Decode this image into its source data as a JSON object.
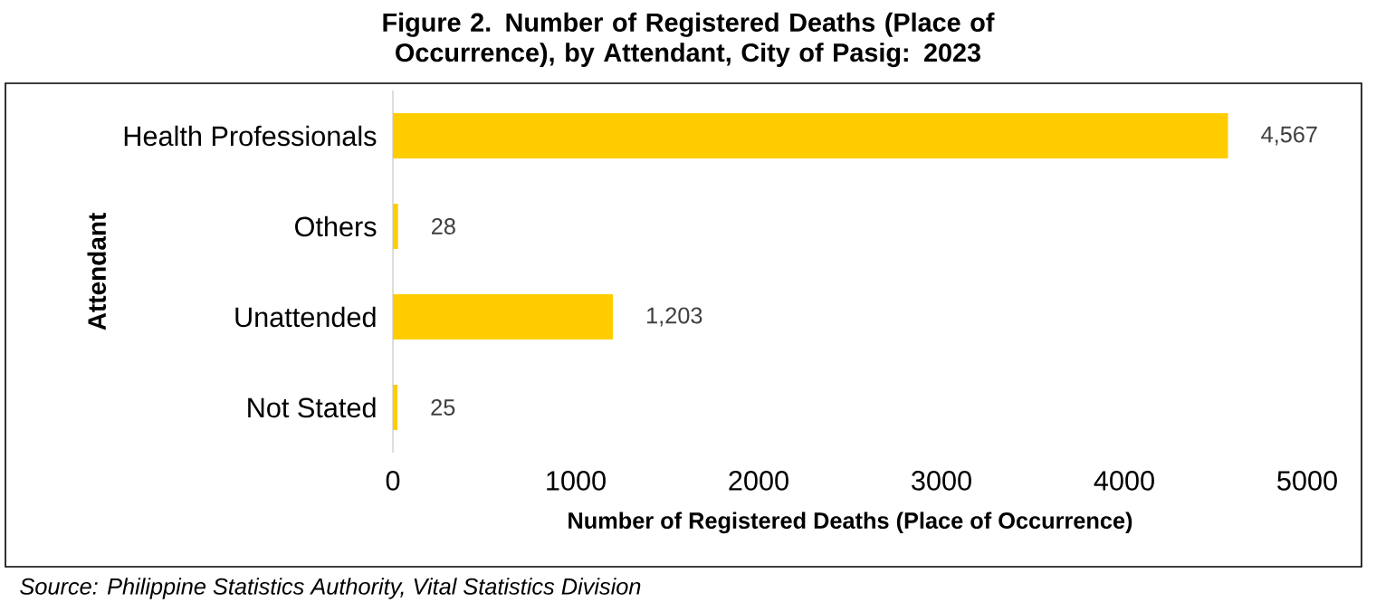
{
  "chart_data": {
    "type": "bar",
    "orientation": "horizontal",
    "title": "Figure 2.  Number of Registered Deaths (Place of Occurrence), by Attendant, City of Pasig: 2023",
    "categories": [
      "Health Professionals",
      "Others",
      "Unattended",
      "Not Stated"
    ],
    "values": [
      4567,
      28,
      1203,
      25
    ],
    "value_labels": [
      "4,567",
      "28",
      "1,203",
      "25"
    ],
    "color": "#ffcc00",
    "xlim": [
      0,
      5000
    ],
    "xticks": [
      0,
      1000,
      2000,
      3000,
      4000,
      5000
    ],
    "xlabel": "Number of Registered Deaths (Place of Occurrence)",
    "ylabel": "Attendant",
    "annotations": [
      "Source: Philippine Statistics Authority, Vital Statistics Division"
    ]
  }
}
